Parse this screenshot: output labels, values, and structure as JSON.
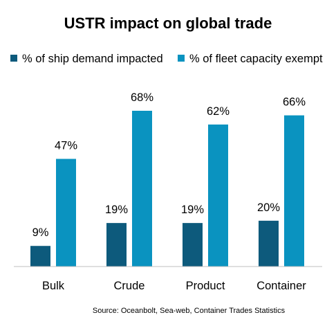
{
  "chart_data": {
    "type": "bar",
    "title": "USTR impact on global trade",
    "categories": [
      "Bulk",
      "Crude",
      "Product",
      "Container"
    ],
    "series": [
      {
        "name": "% of ship demand impacted",
        "values": [
          9,
          19,
          19,
          20
        ],
        "labels": [
          "9%",
          "19%",
          "19%",
          "20%"
        ],
        "color": "#0d5a7c"
      },
      {
        "name": "% of fleet capacity exempt",
        "values": [
          47,
          68,
          62,
          66
        ],
        "labels": [
          "47%",
          "68%",
          "62%",
          "66%"
        ],
        "color": "#0a93c0"
      }
    ],
    "ylim": [
      0,
      70
    ],
    "grid": false,
    "legend_position": "top",
    "source": "Source: Oceanbolt, Sea-web, Container Trades Statistics"
  }
}
